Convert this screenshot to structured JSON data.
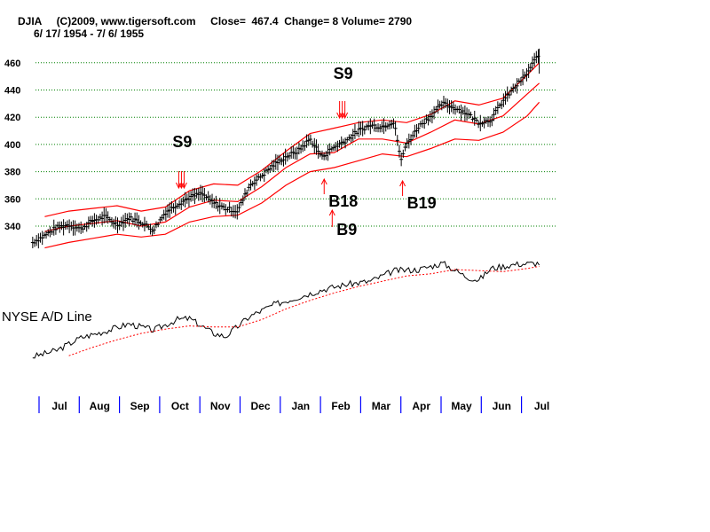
{
  "header": {
    "line1": "DJIA     (C)2009, www.tigersoft.com     Close=  467.4  Change= 8 Volume= 2790",
    "line2": "6/ 17/ 1954 - 7/ 6/ 1955"
  },
  "ad_line_title": "NYSE A/D Line",
  "signals": [
    {
      "label": "S9",
      "type": "sell",
      "date_index": 3.1
    },
    {
      "label": "S9",
      "type": "sell",
      "date_index": 7.1
    },
    {
      "label": "B18",
      "type": "buy",
      "date_index": 6.65
    },
    {
      "label": "B9",
      "type": "buy",
      "date_index": 6.85
    },
    {
      "label": "B19",
      "type": "buy",
      "date_index": 8.6
    }
  ],
  "colors": {
    "price_bars": "#000000",
    "bands": "#ff0000",
    "grid": "#008000",
    "month_ticks": "#0000ff",
    "ad_line": "#000000",
    "ad_ma": "#ff0000"
  },
  "chart_data": [
    {
      "type": "line",
      "title": "DJIA",
      "subtitle": "6/ 17/ 1954 - 7/ 6/ 1955",
      "x_ticks": [
        "Jul",
        "Aug",
        "Sep",
        "Oct",
        "Nov",
        "Dec",
        "Jan",
        "Feb",
        "Mar",
        "Apr",
        "May",
        "Jun",
        "Jul"
      ],
      "y_ticks": [
        340,
        360,
        380,
        400,
        420,
        440,
        460
      ],
      "ylim": [
        320,
        475
      ],
      "grid": true,
      "series": [
        {
          "role": "price",
          "x": [
            -0.6,
            -0.3,
            0.0,
            0.3,
            0.6,
            0.9,
            1.2,
            1.5,
            1.8,
            2.1,
            2.4,
            2.7,
            3.0,
            3.3,
            3.6,
            3.9,
            4.2,
            4.5,
            4.8,
            5.1,
            5.4,
            5.7,
            6.0,
            6.3,
            6.6,
            6.9,
            7.2,
            7.5,
            7.8,
            8.1,
            8.4,
            8.55,
            8.7,
            9.0,
            9.3,
            9.6,
            9.9,
            10.2,
            10.5,
            10.8,
            11.1,
            11.4,
            11.7,
            12.0
          ],
          "values": [
            328,
            333,
            339,
            341,
            338,
            344,
            347,
            341,
            346,
            343,
            337,
            350,
            356,
            361,
            364,
            357,
            353,
            351,
            370,
            377,
            385,
            391,
            395,
            404,
            391,
            398,
            403,
            410,
            414,
            413,
            417,
            388,
            400,
            413,
            421,
            430,
            427,
            423,
            416,
            418,
            432,
            442,
            452,
            467.4
          ]
        },
        {
          "role": "upper band",
          "x": [
            -0.3,
            0.3,
            0.9,
            1.5,
            2.1,
            2.7,
            3.3,
            3.9,
            4.5,
            5.1,
            5.7,
            6.3,
            6.9,
            7.5,
            8.1,
            8.7,
            9.3,
            9.9,
            10.5,
            11.1,
            11.7,
            12.0
          ],
          "values": [
            347,
            351,
            353,
            355,
            351,
            354,
            366,
            371,
            370,
            381,
            395,
            408,
            412,
            416,
            418,
            416,
            422,
            432,
            429,
            434,
            451,
            460
          ]
        },
        {
          "role": "middle band",
          "x": [
            -0.3,
            0.3,
            0.9,
            1.5,
            2.1,
            2.7,
            3.3,
            3.9,
            4.5,
            5.1,
            5.7,
            6.3,
            6.9,
            7.5,
            8.1,
            8.7,
            9.3,
            9.9,
            10.5,
            11.1,
            11.7,
            12.0
          ],
          "values": [
            336,
            340,
            342,
            344,
            340,
            343,
            354,
            359,
            358,
            369,
            383,
            393,
            394,
            404,
            404,
            401,
            409,
            418,
            415,
            421,
            437,
            445
          ]
        },
        {
          "role": "lower band",
          "x": [
            -0.3,
            0.3,
            0.9,
            1.5,
            2.1,
            2.7,
            3.3,
            3.9,
            4.5,
            5.1,
            5.7,
            6.3,
            6.9,
            7.5,
            8.1,
            8.7,
            9.3,
            9.9,
            10.5,
            11.1,
            11.7,
            12.0
          ],
          "values": [
            324,
            328,
            331,
            334,
            332,
            334,
            343,
            347,
            348,
            357,
            370,
            380,
            383,
            388,
            393,
            391,
            397,
            404,
            403,
            409,
            421,
            431
          ]
        }
      ]
    },
    {
      "type": "line",
      "title": "NYSE A/D Line",
      "ylim": [
        0,
        100
      ],
      "series": [
        {
          "role": "A/D line",
          "x": [
            -0.6,
            0.0,
            0.6,
            1.2,
            1.8,
            2.4,
            3.0,
            3.3,
            3.9,
            4.2,
            4.8,
            5.4,
            6.0,
            6.6,
            7.2,
            7.8,
            8.4,
            9.0,
            9.6,
            10.2,
            10.5,
            10.8,
            11.4,
            12.0
          ],
          "values": [
            8,
            14,
            26,
            32,
            39,
            33,
            43,
            44,
            30,
            27,
            46,
            57,
            64,
            71,
            76,
            79,
            89,
            90,
            96,
            83,
            80,
            91,
            95,
            96
          ]
        },
        {
          "role": "moving average",
          "x": [
            0.3,
            0.9,
            1.5,
            2.1,
            2.7,
            3.3,
            3.9,
            4.5,
            5.1,
            5.7,
            6.3,
            6.9,
            7.5,
            8.1,
            8.7,
            9.3,
            9.9,
            10.5,
            11.1,
            11.7,
            12.0
          ],
          "values": [
            9,
            17,
            24,
            30,
            34,
            37,
            36,
            36,
            43,
            53,
            61,
            68,
            74,
            79,
            84,
            86,
            90,
            89,
            88,
            91,
            93
          ]
        }
      ]
    }
  ]
}
